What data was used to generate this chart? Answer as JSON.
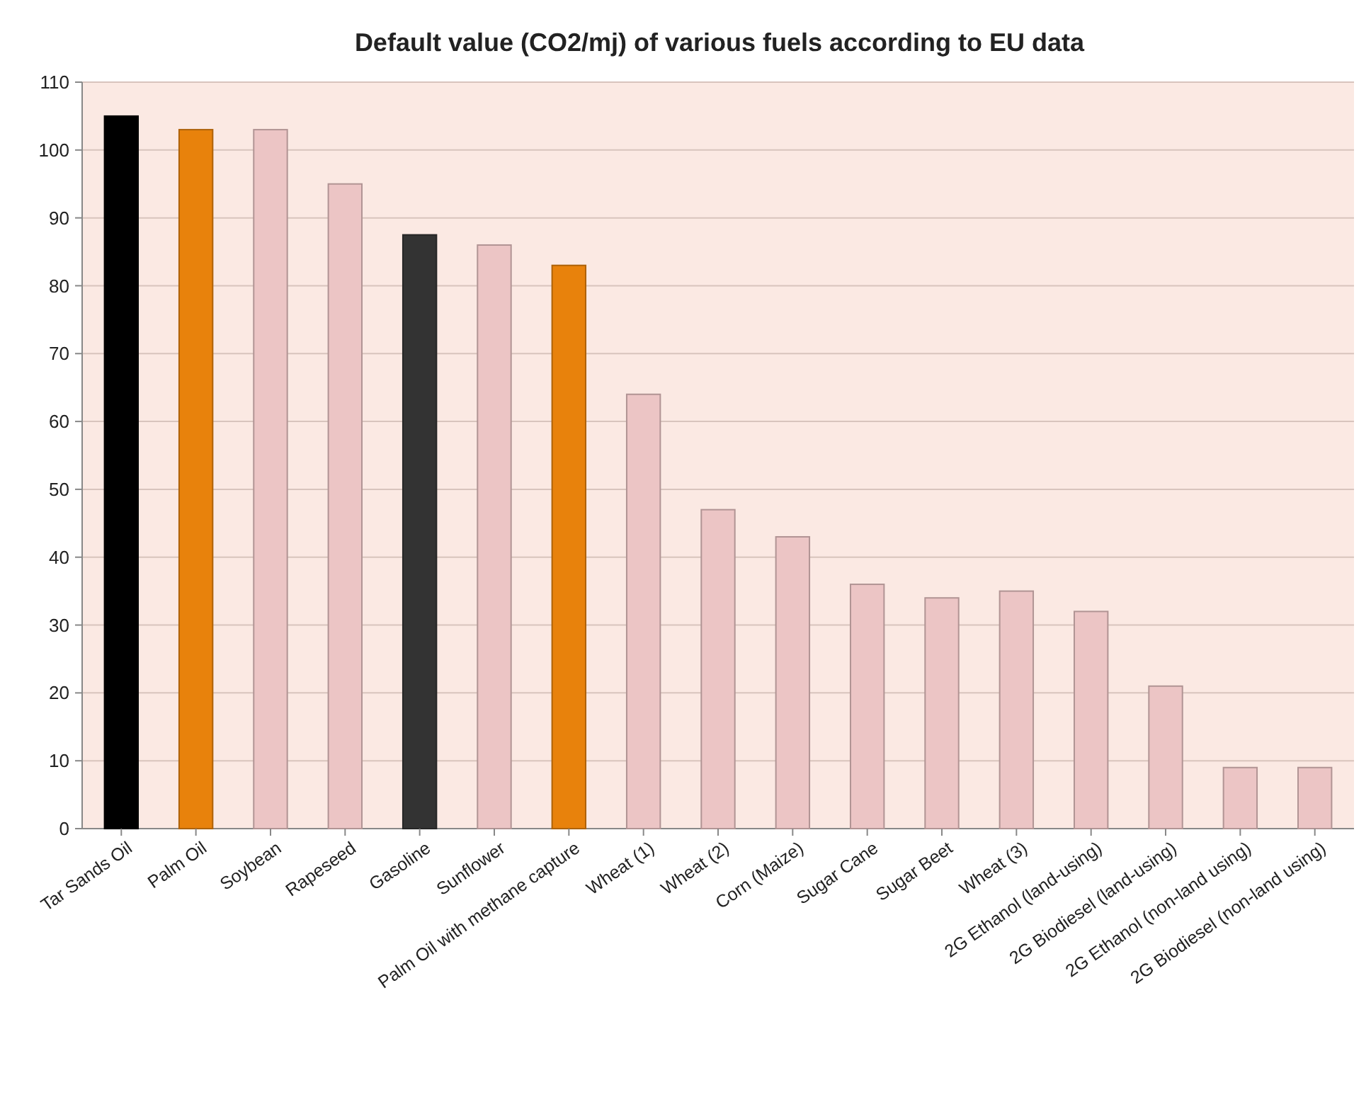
{
  "chart_data": {
    "type": "bar",
    "title": "Default value (CO2/mj) of various fuels according to EU data",
    "categories": [
      "Tar Sands Oil",
      "Palm Oil",
      "Soybean",
      "Rapeseed",
      "Gasoline",
      "Sunflower",
      "Palm Oil with methane capture",
      "Wheat (1)",
      "Wheat (2)",
      "Corn (Maize)",
      "Sugar Cane",
      "Sugar Beet",
      "Wheat (3)",
      "2G Ethanol (land-using)",
      "2G Biodiesel (land-using)",
      "2G Ethanol (non-land using)",
      "2G Biodiesel (non-land using)"
    ],
    "values": [
      105,
      103,
      103,
      95,
      87.5,
      86,
      83,
      64,
      47,
      43,
      36,
      34,
      35,
      32,
      21,
      9,
      9
    ],
    "colors": [
      "#000000",
      "#e8820c",
      "#ecc5c5",
      "#ecc5c5",
      "#333333",
      "#ecc5c5",
      "#e8820c",
      "#ecc5c5",
      "#ecc5c5",
      "#ecc5c5",
      "#ecc5c5",
      "#ecc5c5",
      "#ecc5c5",
      "#ecc5c5",
      "#ecc5c5",
      "#ecc5c5",
      "#ecc5c5"
    ],
    "ylim": [
      0,
      110
    ],
    "yticks": [
      0,
      10,
      20,
      30,
      40,
      50,
      60,
      70,
      80,
      90,
      100,
      110
    ],
    "grid": "y"
  }
}
